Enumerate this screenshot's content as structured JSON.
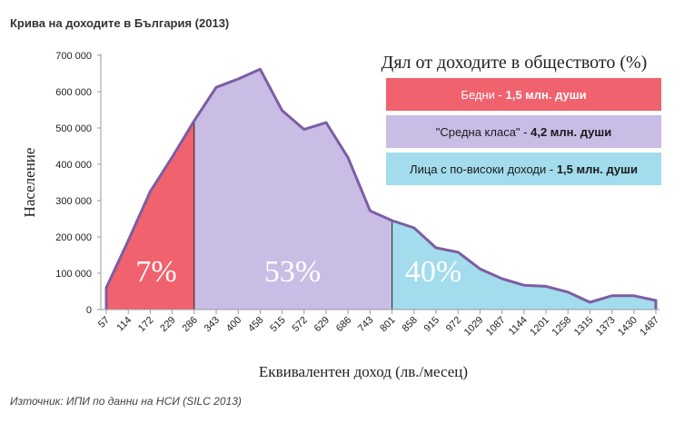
{
  "header": {
    "title": "Крива на доходите в България (2013)"
  },
  "footer": {
    "source": "Източник: ИПИ по данни на НСИ (SILC 2013)"
  },
  "colors": {
    "poor": "#f0626e",
    "middle": "#c9bde6",
    "high": "#a3dcec",
    "line": "#7d5da3"
  },
  "chart_data": {
    "type": "area",
    "ylabel": "Население",
    "xlabel": "Еквивалентен доход (лв./месец)",
    "ylim": [
      0,
      700000
    ],
    "y_ticks": [
      "0",
      "100 000",
      "200 000",
      "300 000",
      "400 000",
      "500 000",
      "600 000",
      "700 000"
    ],
    "x_ticks": [
      "57",
      "114",
      "172",
      "229",
      "286",
      "343",
      "400",
      "458",
      "515",
      "572",
      "629",
      "686",
      "743",
      "801",
      "858",
      "915",
      "972",
      "1029",
      "1087",
      "1144",
      "1201",
      "1258",
      "1315",
      "1373",
      "1430",
      "1487"
    ],
    "x": [
      57,
      114,
      172,
      229,
      286,
      343,
      400,
      458,
      515,
      572,
      629,
      686,
      743,
      801,
      858,
      915,
      972,
      1029,
      1087,
      1144,
      1201,
      1258,
      1315,
      1373,
      1430,
      1487
    ],
    "values": [
      60000,
      190000,
      325000,
      420000,
      520000,
      612000,
      635000,
      662000,
      548000,
      496000,
      515000,
      418000,
      272000,
      245000,
      225000,
      170000,
      158000,
      112000,
      85000,
      67000,
      64000,
      48000,
      20000,
      38000,
      38000,
      25000
    ],
    "legend_title": "Дял от доходите в обществото (%)",
    "segments": [
      {
        "name": "Бедни",
        "detail": "1,5 млн. души",
        "percent": "7%",
        "from_index": 0,
        "to_index": 4
      },
      {
        "name": "\"Средна класа\"",
        "detail": "4,2 млн. души",
        "percent": "53%",
        "from_index": 4,
        "to_index": 13
      },
      {
        "name": "Лица с по-високи доходи",
        "detail": "1,5 млн. души",
        "percent": "40%",
        "from_index": 13,
        "to_index": 25
      }
    ]
  }
}
